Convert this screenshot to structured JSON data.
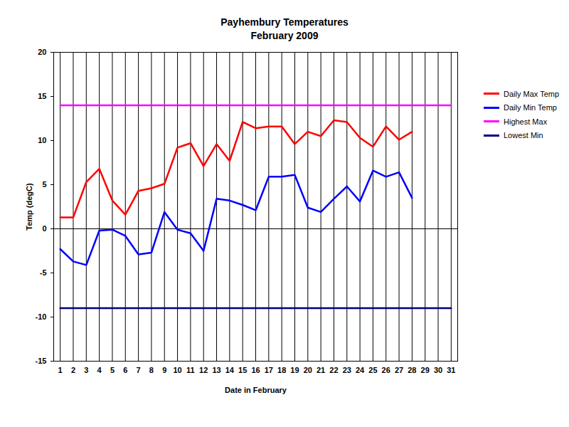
{
  "chart_data": {
    "type": "line",
    "title": "Payhembury Temperatures",
    "subtitle": "February 2009",
    "xlabel": "Date in February",
    "ylabel": "Temp (degC)",
    "x": [
      1,
      2,
      3,
      4,
      5,
      6,
      7,
      8,
      9,
      10,
      11,
      12,
      13,
      14,
      15,
      16,
      17,
      18,
      19,
      20,
      21,
      22,
      23,
      24,
      25,
      26,
      27,
      28,
      29,
      30,
      31
    ],
    "xlim": [
      0.5,
      31.5
    ],
    "xticks": [
      1,
      2,
      3,
      4,
      5,
      6,
      7,
      8,
      9,
      10,
      11,
      12,
      13,
      14,
      15,
      16,
      17,
      18,
      19,
      20,
      21,
      22,
      23,
      24,
      25,
      26,
      27,
      28,
      29,
      30,
      31
    ],
    "ylim": [
      -15,
      20
    ],
    "yticks": [
      -15,
      -10,
      -5,
      0,
      5,
      10,
      15,
      20
    ],
    "grid": "x",
    "legend": "right",
    "series": [
      {
        "name": "Daily Max Temp",
        "color": "#ff0000",
        "values": [
          1.3,
          1.3,
          5.3,
          6.8,
          3.2,
          1.6,
          4.3,
          4.6,
          5.1,
          9.2,
          9.7,
          7.1,
          9.6,
          7.7,
          12.1,
          11.4,
          11.6,
          11.6,
          9.6,
          11.0,
          10.5,
          12.3,
          12.1,
          10.3,
          9.3,
          11.6,
          10.1,
          11.0,
          null,
          null,
          null
        ]
      },
      {
        "name": "Daily Min Temp",
        "color": "#0000ff",
        "values": [
          -2.3,
          -3.7,
          -4.1,
          -0.2,
          -0.1,
          -0.8,
          -2.9,
          -2.7,
          1.9,
          -0.1,
          -0.5,
          -2.5,
          3.4,
          3.2,
          2.7,
          2.1,
          5.9,
          5.9,
          6.1,
          2.4,
          1.9,
          3.4,
          4.8,
          3.1,
          6.6,
          5.9,
          6.4,
          3.5,
          null,
          null,
          null
        ]
      },
      {
        "name": "Highest Max",
        "color": "#ff00ff",
        "values": [
          14,
          14,
          14,
          14,
          14,
          14,
          14,
          14,
          14,
          14,
          14,
          14,
          14,
          14,
          14,
          14,
          14,
          14,
          14,
          14,
          14,
          14,
          14,
          14,
          14,
          14,
          14,
          14,
          14,
          14,
          14
        ]
      },
      {
        "name": "Lowest Min",
        "color": "#000080",
        "values": [
          -9,
          -9,
          -9,
          -9,
          -9,
          -9,
          -9,
          -9,
          -9,
          -9,
          -9,
          -9,
          -9,
          -9,
          -9,
          -9,
          -9,
          -9,
          -9,
          -9,
          -9,
          -9,
          -9,
          -9,
          -9,
          -9,
          -9,
          -9,
          -9,
          -9,
          -9
        ]
      }
    ]
  }
}
